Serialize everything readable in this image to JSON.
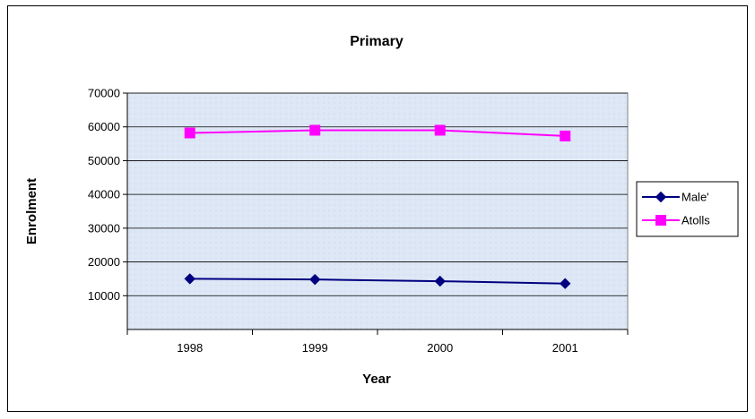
{
  "chart_data": {
    "type": "line",
    "title": "Primary",
    "xlabel": "Year",
    "ylabel": "Enrolment",
    "categories": [
      "1998",
      "1999",
      "2000",
      "2001"
    ],
    "ylim": [
      0,
      70000
    ],
    "yticks": [
      10000,
      20000,
      30000,
      40000,
      50000,
      60000,
      70000
    ],
    "grid": true,
    "legend_position": "right",
    "plot_background": "#dde7f5",
    "series": [
      {
        "name": "Male'",
        "values": [
          15000,
          14800,
          14300,
          13600
        ],
        "color": "#000080",
        "marker": "diamond"
      },
      {
        "name": "Atolls",
        "values": [
          58200,
          59000,
          59000,
          57300
        ],
        "color": "#ff00ff",
        "marker": "square"
      }
    ]
  }
}
